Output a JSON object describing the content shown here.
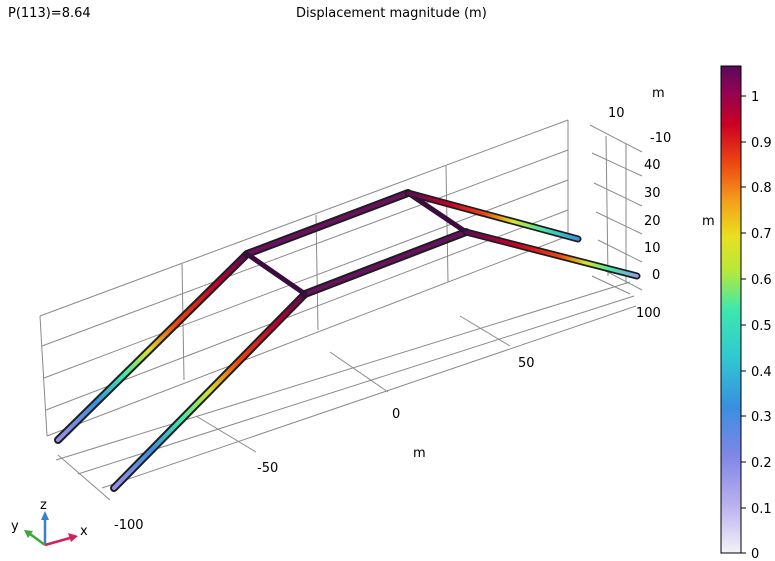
{
  "header": {
    "parameter_label": "P(113)=8.64",
    "plot_title": "Displacement magnitude (m)"
  },
  "axes": {
    "x_label": "m",
    "y_label": "m",
    "z_label": "m",
    "x_ticks": [
      "-100",
      "-50",
      "0",
      "50",
      "100"
    ],
    "y_ticks": [
      "10",
      "-10"
    ],
    "z_ticks": [
      "40",
      "30",
      "20",
      "10",
      "0"
    ]
  },
  "triad": {
    "x": "x",
    "y": "y",
    "z": "z"
  },
  "colorbar": {
    "ticks": [
      "1",
      "0.9",
      "0.8",
      "0.7",
      "0.6",
      "0.5",
      "0.4",
      "0.3",
      "0.2",
      "0.1",
      "0"
    ],
    "colormap_stops": [
      "#f4f2fb",
      "#9d8ee6",
      "#4f74e0",
      "#2fb9d8",
      "#3de8ae",
      "#d8e428",
      "#f4a21b",
      "#ee4712",
      "#cc0024",
      "#8e0455",
      "#5a0a5a"
    ]
  }
}
